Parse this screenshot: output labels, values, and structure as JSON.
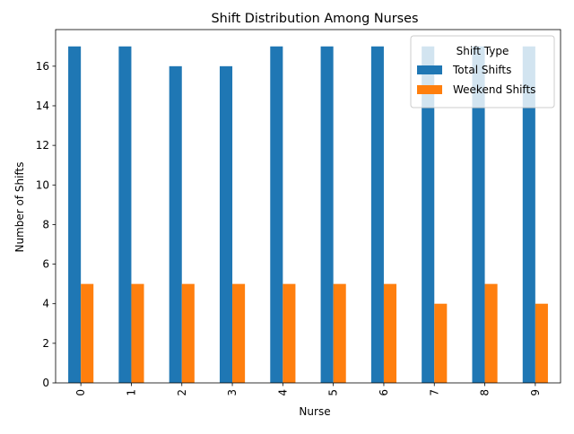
{
  "chart_data": {
    "type": "bar",
    "title": "Shift Distribution Among Nurses",
    "xlabel": "Nurse",
    "ylabel": "Number of Shifts",
    "categories": [
      "0",
      "1",
      "2",
      "3",
      "4",
      "5",
      "6",
      "7",
      "8",
      "9"
    ],
    "series": [
      {
        "name": "Total Shifts",
        "color": "#1f77b4",
        "values": [
          17,
          17,
          16,
          16,
          17,
          17,
          17,
          17,
          17,
          17
        ]
      },
      {
        "name": "Weekend Shifts",
        "color": "#ff7f0e",
        "values": [
          5,
          5,
          5,
          5,
          5,
          5,
          5,
          4,
          5,
          4
        ]
      }
    ],
    "ylim": [
      0,
      17.85
    ],
    "yticks": [
      0,
      2,
      4,
      6,
      8,
      10,
      12,
      14,
      16
    ],
    "xtick_rotation": "vertical",
    "grid": false,
    "legend": {
      "title": "Shift Type",
      "placement": "top-right"
    }
  }
}
